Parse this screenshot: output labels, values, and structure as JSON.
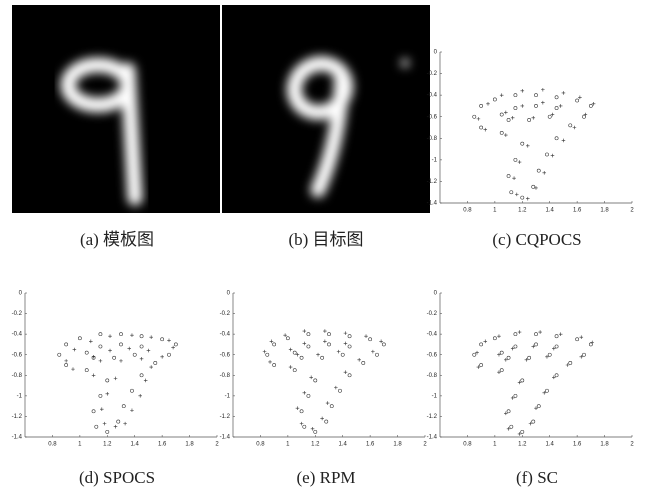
{
  "captions": [
    "(a) 模板图",
    "(b) 目标图",
    "(c) CQPOCS",
    "(d) SPOCS",
    "(e) RPM",
    "(f) SC"
  ],
  "chart_data": [
    {
      "type": "scatter",
      "xlim": [
        0.6,
        2
      ],
      "ylim": [
        -1.4,
        0
      ],
      "xticks": [
        0.8,
        1,
        1.2,
        1.4,
        1.6,
        1.8,
        2
      ],
      "yticks": [
        0,
        -0.2,
        -0.4,
        -0.6,
        -0.8,
        -1,
        -1.2,
        -1.4
      ],
      "series": [
        {
          "marker": "o",
          "color": "#333333",
          "x": [
            0.85,
            0.9,
            1.0,
            1.15,
            1.3,
            1.45,
            1.6,
            1.7,
            1.65,
            1.55,
            1.45,
            1.38,
            1.32,
            1.28,
            1.2,
            1.12,
            1.1,
            1.15,
            1.2,
            1.05,
            0.9,
            1.05,
            1.15,
            1.3,
            1.45,
            1.4,
            1.25,
            1.1
          ],
          "values": [
            -0.6,
            -0.5,
            -0.44,
            -0.4,
            -0.4,
            -0.42,
            -0.45,
            -0.5,
            -0.6,
            -0.68,
            -0.8,
            -0.95,
            -1.1,
            -1.25,
            -1.35,
            -1.3,
            -1.15,
            -1.0,
            -0.85,
            -0.75,
            -0.7,
            -0.58,
            -0.52,
            -0.5,
            -0.52,
            -0.6,
            -0.63,
            -0.63
          ]
        },
        {
          "marker": "+",
          "color": "#333333",
          "x": [
            0.88,
            0.95,
            1.05,
            1.2,
            1.35,
            1.5,
            1.62,
            1.72,
            1.66,
            1.58,
            1.5,
            1.42,
            1.36,
            1.3,
            1.24,
            1.16,
            1.14,
            1.18,
            1.24,
            1.08,
            0.93,
            1.08,
            1.2,
            1.35,
            1.48,
            1.42,
            1.28,
            1.13
          ],
          "values": [
            -0.62,
            -0.48,
            -0.4,
            -0.36,
            -0.35,
            -0.38,
            -0.42,
            -0.48,
            -0.58,
            -0.7,
            -0.82,
            -0.96,
            -1.12,
            -1.26,
            -1.36,
            -1.32,
            -1.17,
            -1.02,
            -0.87,
            -0.77,
            -0.72,
            -0.56,
            -0.5,
            -0.47,
            -0.5,
            -0.58,
            -0.61,
            -0.61
          ]
        }
      ]
    },
    {
      "type": "scatter",
      "xlim": [
        0.6,
        2
      ],
      "ylim": [
        -1.4,
        0
      ],
      "xticks": [
        0.8,
        1,
        1.2,
        1.4,
        1.6,
        1.8,
        2
      ],
      "yticks": [
        0,
        -0.2,
        -0.4,
        -0.6,
        -0.8,
        -1,
        -1.2,
        -1.4
      ],
      "series": [
        {
          "marker": "o",
          "color": "#333333",
          "x": [
            0.85,
            0.9,
            1.0,
            1.15,
            1.3,
            1.45,
            1.6,
            1.7,
            1.65,
            1.55,
            1.45,
            1.38,
            1.32,
            1.28,
            1.2,
            1.12,
            1.1,
            1.15,
            1.2,
            1.05,
            0.9,
            1.05,
            1.15,
            1.3,
            1.45,
            1.4,
            1.25,
            1.1
          ],
          "values": [
            -0.6,
            -0.5,
            -0.44,
            -0.4,
            -0.4,
            -0.42,
            -0.45,
            -0.5,
            -0.6,
            -0.68,
            -0.8,
            -0.95,
            -1.1,
            -1.25,
            -1.35,
            -1.3,
            -1.15,
            -1.0,
            -0.85,
            -0.75,
            -0.7,
            -0.58,
            -0.52,
            -0.5,
            -0.52,
            -0.6,
            -0.63,
            -0.63
          ]
        },
        {
          "marker": "+",
          "color": "#333333",
          "x": [
            0.9,
            0.96,
            1.08,
            1.22,
            1.38,
            1.52,
            1.65,
            1.68,
            1.6,
            1.52,
            1.48,
            1.44,
            1.38,
            1.33,
            1.26,
            1.18,
            1.16,
            1.2,
            1.26,
            1.1,
            0.95,
            1.1,
            1.22,
            1.36,
            1.5,
            1.45,
            1.3,
            1.15
          ],
          "values": [
            -0.66,
            -0.55,
            -0.47,
            -0.42,
            -0.41,
            -0.43,
            -0.46,
            -0.53,
            -0.62,
            -0.72,
            -0.85,
            -1.0,
            -1.14,
            -1.27,
            -1.3,
            -1.27,
            -1.13,
            -0.98,
            -0.83,
            -0.8,
            -0.74,
            -0.62,
            -0.56,
            -0.54,
            -0.56,
            -0.64,
            -0.66,
            -0.66
          ]
        }
      ]
    },
    {
      "type": "scatter",
      "xlim": [
        0.6,
        2
      ],
      "ylim": [
        -1.4,
        0
      ],
      "xticks": [
        0.8,
        1,
        1.2,
        1.4,
        1.6,
        1.8,
        2
      ],
      "yticks": [
        0,
        -0.2,
        -0.4,
        -0.6,
        -0.8,
        -1,
        -1.2,
        -1.4
      ],
      "series": [
        {
          "marker": "o",
          "color": "#333333",
          "x": [
            0.85,
            0.9,
            1.0,
            1.15,
            1.3,
            1.45,
            1.6,
            1.7,
            1.65,
            1.55,
            1.45,
            1.38,
            1.32,
            1.28,
            1.2,
            1.12,
            1.1,
            1.15,
            1.2,
            1.05,
            0.9,
            1.05,
            1.15,
            1.3,
            1.45,
            1.4,
            1.25,
            1.1
          ],
          "values": [
            -0.6,
            -0.5,
            -0.44,
            -0.4,
            -0.4,
            -0.42,
            -0.45,
            -0.5,
            -0.6,
            -0.68,
            -0.8,
            -0.95,
            -1.1,
            -1.25,
            -1.35,
            -1.3,
            -1.15,
            -1.0,
            -0.85,
            -0.75,
            -0.7,
            -0.58,
            -0.52,
            -0.5,
            -0.52,
            -0.6,
            -0.63,
            -0.63
          ]
        },
        {
          "marker": "+",
          "color": "#333333",
          "x": [
            0.83,
            0.88,
            0.98,
            1.12,
            1.27,
            1.42,
            1.57,
            1.68,
            1.62,
            1.52,
            1.42,
            1.35,
            1.29,
            1.25,
            1.18,
            1.1,
            1.07,
            1.12,
            1.17,
            1.02,
            0.87,
            1.02,
            1.12,
            1.27,
            1.42,
            1.37,
            1.22,
            1.07
          ],
          "values": [
            -0.57,
            -0.47,
            -0.41,
            -0.37,
            -0.37,
            -0.39,
            -0.42,
            -0.47,
            -0.57,
            -0.65,
            -0.77,
            -0.92,
            -1.07,
            -1.22,
            -1.32,
            -1.27,
            -1.12,
            -0.97,
            -0.82,
            -0.72,
            -0.67,
            -0.55,
            -0.49,
            -0.47,
            -0.49,
            -0.57,
            -0.6,
            -0.6
          ]
        }
      ]
    },
    {
      "type": "scatter",
      "xlim": [
        0.6,
        2
      ],
      "ylim": [
        -1.4,
        0
      ],
      "xticks": [
        0.8,
        1,
        1.2,
        1.4,
        1.6,
        1.8,
        2
      ],
      "yticks": [
        0,
        -0.2,
        -0.4,
        -0.6,
        -0.8,
        -1,
        -1.2,
        -1.4
      ],
      "series": [
        {
          "marker": "o",
          "color": "#333333",
          "x": [
            0.85,
            0.9,
            1.0,
            1.15,
            1.3,
            1.45,
            1.6,
            1.7,
            1.65,
            1.55,
            1.45,
            1.38,
            1.32,
            1.28,
            1.2,
            1.12,
            1.1,
            1.15,
            1.2,
            1.05,
            0.9,
            1.05,
            1.15,
            1.3,
            1.45,
            1.4,
            1.25,
            1.1
          ],
          "values": [
            -0.6,
            -0.5,
            -0.44,
            -0.4,
            -0.4,
            -0.42,
            -0.45,
            -0.5,
            -0.6,
            -0.68,
            -0.8,
            -0.95,
            -1.1,
            -1.25,
            -1.35,
            -1.3,
            -1.15,
            -1.0,
            -0.85,
            -0.75,
            -0.7,
            -0.58,
            -0.52,
            -0.5,
            -0.52,
            -0.6,
            -0.63,
            -0.63
          ]
        },
        {
          "marker": "+",
          "color": "#333333",
          "x": [
            0.87,
            0.93,
            1.03,
            1.18,
            1.33,
            1.48,
            1.63,
            1.71,
            1.63,
            1.53,
            1.43,
            1.36,
            1.3,
            1.26,
            1.18,
            1.1,
            1.08,
            1.13,
            1.18,
            1.03,
            0.88,
            1.03,
            1.13,
            1.28,
            1.43,
            1.38,
            1.23,
            1.08
          ],
          "values": [
            -0.58,
            -0.47,
            -0.42,
            -0.38,
            -0.38,
            -0.4,
            -0.43,
            -0.48,
            -0.62,
            -0.7,
            -0.82,
            -0.97,
            -1.12,
            -1.27,
            -1.37,
            -1.32,
            -1.17,
            -1.02,
            -0.87,
            -0.77,
            -0.72,
            -0.6,
            -0.54,
            -0.52,
            -0.54,
            -0.62,
            -0.65,
            -0.65
          ]
        }
      ]
    }
  ]
}
